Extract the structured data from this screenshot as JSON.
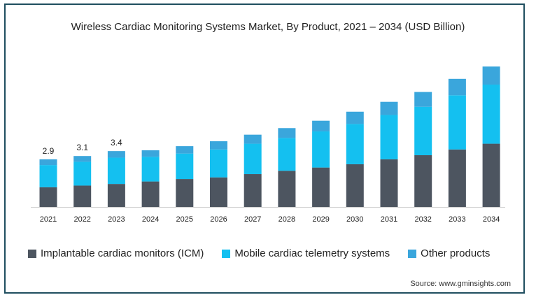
{
  "chart_data": {
    "type": "bar",
    "stacked": true,
    "title": "Wireless Cardiac Monitoring Systems Market, By Product, 2021 – 2034 (USD Billion)",
    "xlabel": "",
    "ylabel": "",
    "categories": [
      "2021",
      "2022",
      "2023",
      "2024",
      "2025",
      "2026",
      "2027",
      "2028",
      "2029",
      "2030",
      "2031",
      "2032",
      "2033",
      "2034"
    ],
    "series": [
      {
        "name": "Implantable cardiac monitors (ICM)",
        "color": "#4d5560",
        "values": [
          1.2,
          1.3,
          1.4,
          1.55,
          1.7,
          1.8,
          2.0,
          2.2,
          2.4,
          2.6,
          2.9,
          3.15,
          3.5,
          3.85
        ]
      },
      {
        "name": "Mobile cardiac telemetry systems",
        "color": "#14c0f0",
        "values": [
          1.35,
          1.45,
          1.6,
          1.5,
          1.55,
          1.7,
          1.85,
          2.0,
          2.2,
          2.45,
          2.7,
          2.95,
          3.3,
          3.6
        ]
      },
      {
        "name": "Other products",
        "color": "#3aa6dc",
        "values": [
          0.35,
          0.35,
          0.4,
          0.4,
          0.45,
          0.5,
          0.55,
          0.6,
          0.65,
          0.75,
          0.8,
          0.9,
          1.0,
          1.1
        ]
      }
    ],
    "data_labels": [
      {
        "category": "2021",
        "text": "2.9"
      },
      {
        "category": "2022",
        "text": "3.1"
      },
      {
        "category": "2023",
        "text": "3.4"
      }
    ],
    "ylim": [
      0,
      8.6
    ],
    "grid": false,
    "legend_position": "bottom"
  },
  "source": "Source: www.gminsights.com"
}
